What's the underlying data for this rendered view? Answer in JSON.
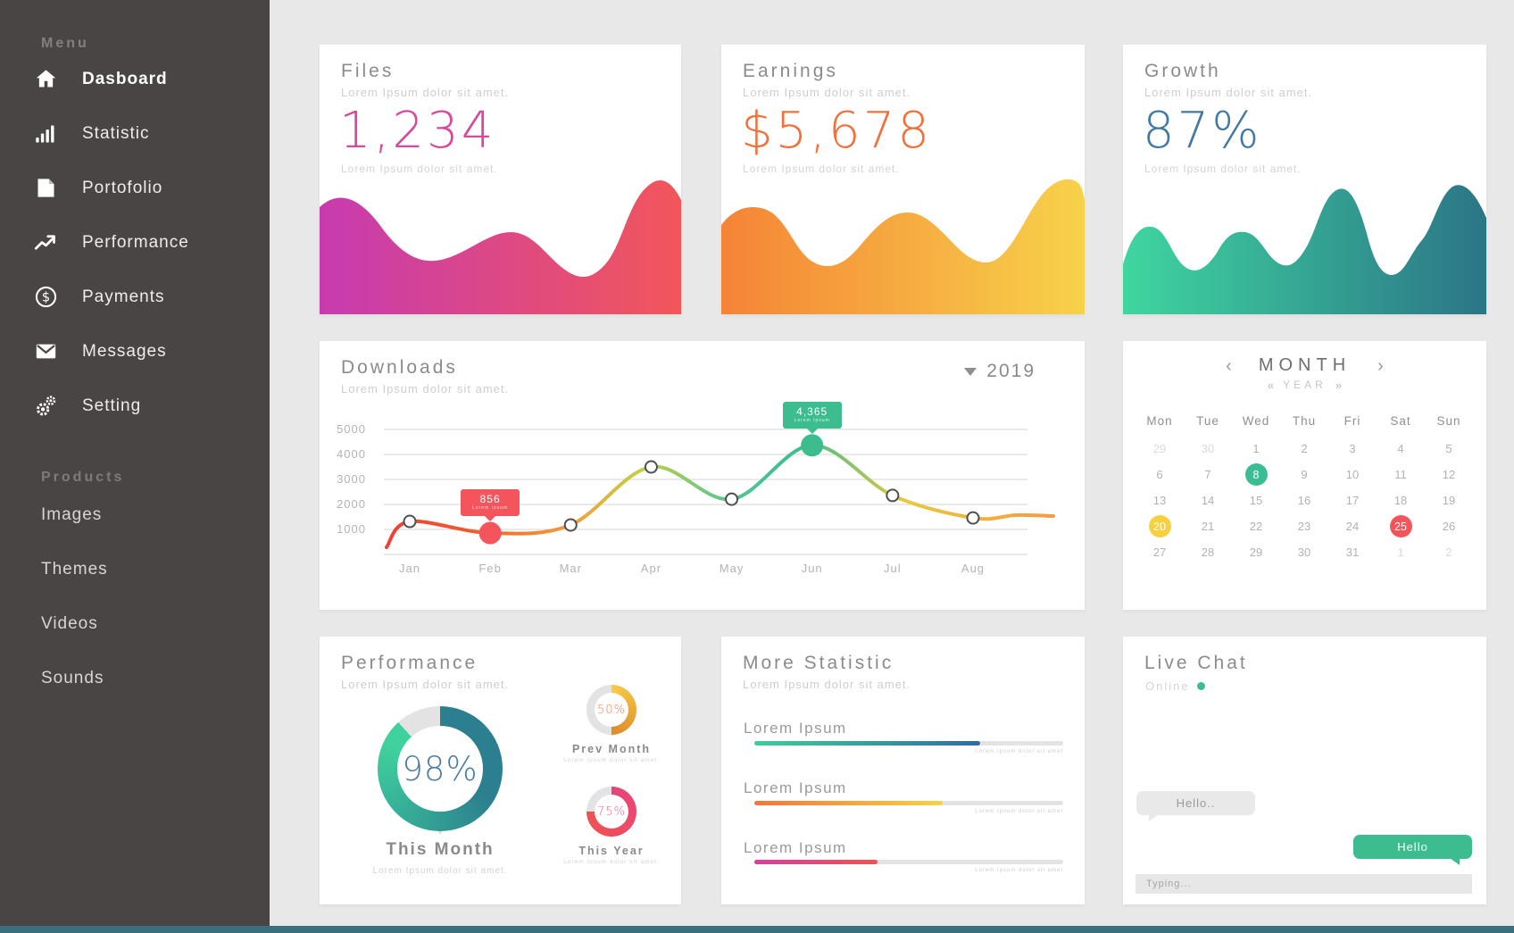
{
  "window": {
    "bg": "#e9e8e8",
    "sidebar_bg": "#4a4545",
    "bottom_bar_color": "#3a707e"
  },
  "sidebar": {
    "menu_label": "Menu",
    "items": [
      {
        "label": "Dasboard",
        "icon": "home",
        "active": true
      },
      {
        "label": "Statistic",
        "icon": "bar-chart",
        "active": false
      },
      {
        "label": "Portofolio",
        "icon": "file",
        "active": false
      },
      {
        "label": "Performance",
        "icon": "trending-up",
        "active": false
      },
      {
        "label": "Payments",
        "icon": "dollar-circle",
        "active": false
      },
      {
        "label": "Messages",
        "icon": "envelope",
        "active": false
      },
      {
        "label": "Setting",
        "icon": "gears",
        "active": false
      }
    ],
    "products_label": "Products",
    "product_items": [
      {
        "label": "Images"
      },
      {
        "label": "Themes"
      },
      {
        "label": "Videos"
      },
      {
        "label": "Sounds"
      }
    ]
  },
  "stat_cards": [
    {
      "title": "Files",
      "subtitle": "Lorem Ipsum dolor sit amet.",
      "value": "1,234",
      "caption": "Lorem Ipsum dolor sit amet.",
      "value_color": "#d8489b",
      "wave": [
        "#c73bb0",
        "#f2565a"
      ]
    },
    {
      "title": "Earnings",
      "subtitle": "Lorem Ipsum dolor sit amet.",
      "value": "$5,678",
      "caption": "Lorem Ipsum dolor sit amet.",
      "value_color": "#f0713c",
      "wave": [
        "#f58436",
        "#f7d24a"
      ]
    },
    {
      "title": "Growth",
      "subtitle": "Lorem Ipsum dolor sit amet.",
      "value": "87%",
      "caption": "Lorem Ipsum dolor sit amet.",
      "value_color": "#4279a3",
      "wave": [
        "#3fd6a0",
        "#2b7587"
      ]
    }
  ],
  "downloads": {
    "title": "Downloads",
    "subtitle": "Lorem Ipsum dolor sit amet.",
    "year_select": {
      "value": "2019"
    },
    "chart": {
      "type": "line",
      "x": [
        "Jan",
        "Feb",
        "Mar",
        "Apr",
        "May",
        "Jun",
        "Jul",
        "Aug"
      ],
      "values": [
        1320,
        856,
        1180,
        3500,
        2210,
        4365,
        2360,
        1460
      ],
      "y_ticks": [
        5000,
        4000,
        3000,
        2000,
        1000
      ],
      "ylim": [
        0,
        5000
      ],
      "line_gradient": [
        "#ef4136",
        "#f1592a",
        "#f59b3c",
        "#c3d143",
        "#52c596",
        "#3dbd8f",
        "#e8c93f",
        "#f59b42"
      ],
      "tooltips": [
        {
          "point": "Feb",
          "value": "856",
          "caption": "Lorem Ipsum",
          "color": "#f4545c"
        },
        {
          "point": "Jun",
          "value": "4,365",
          "caption": "Lorem Ipsum",
          "color": "#3dbd8f"
        }
      ]
    }
  },
  "calendar": {
    "prev_arrow": "‹",
    "next_arrow": "›",
    "month_label": "MONTH",
    "year_prev": "«",
    "year_label": "YEAR",
    "year_next": "»",
    "day_headers": [
      "Mon",
      "Tue",
      "Wed",
      "Thu",
      "Fri",
      "Sat",
      "Sun"
    ],
    "mark_colors": {
      "green": "#3cbc92",
      "yellow": "#f7d03f",
      "red": "#f4545c"
    },
    "weeks": [
      [
        {
          "d": "29",
          "muted": true
        },
        {
          "d": "30",
          "muted": true
        },
        {
          "d": "1"
        },
        {
          "d": "2"
        },
        {
          "d": "3"
        },
        {
          "d": "4"
        },
        {
          "d": "5"
        }
      ],
      [
        {
          "d": "6"
        },
        {
          "d": "7"
        },
        {
          "d": "8",
          "mark": "green"
        },
        {
          "d": "9"
        },
        {
          "d": "10"
        },
        {
          "d": "11"
        },
        {
          "d": "12"
        }
      ],
      [
        {
          "d": "13"
        },
        {
          "d": "14"
        },
        {
          "d": "15"
        },
        {
          "d": "16"
        },
        {
          "d": "17"
        },
        {
          "d": "18"
        },
        {
          "d": "19"
        }
      ],
      [
        {
          "d": "20",
          "mark": "yellow"
        },
        {
          "d": "21"
        },
        {
          "d": "22"
        },
        {
          "d": "23"
        },
        {
          "d": "24"
        },
        {
          "d": "25",
          "mark": "red"
        },
        {
          "d": "26"
        }
      ],
      [
        {
          "d": "27"
        },
        {
          "d": "28"
        },
        {
          "d": "29"
        },
        {
          "d": "30"
        },
        {
          "d": "31"
        },
        {
          "d": "1",
          "muted": true
        },
        {
          "d": "2",
          "muted": true
        }
      ]
    ]
  },
  "performance": {
    "title": "Performance",
    "subtitle": "Lorem Ipsum dolor sit amet.",
    "main_donut": {
      "value": "98%",
      "percent": 98,
      "label": "This Month",
      "caption": "Lorem Ipsum dolor sit amet.",
      "value_color": "#4c7ca3",
      "colors": [
        "#3fd19e",
        "#2b7f8e"
      ]
    },
    "small_donuts": [
      {
        "value": "50%",
        "percent": 50,
        "label": "Prev Month",
        "caption": "Lorem Ipsum dolor sit amet.",
        "value_color": "#ef7a4a",
        "colors": [
          "#f7cc45",
          "#dd8a2c"
        ]
      },
      {
        "value": "75%",
        "percent": 75,
        "label": "This Year",
        "caption": "Lorem Ipsum dolor sit amet.",
        "value_color": "#ed5f8f",
        "colors": [
          "#e8447c",
          "#ef5350"
        ]
      }
    ]
  },
  "more_statistic": {
    "title": "More Statistic",
    "subtitle": "Lorem Ipsum dolor sit amet.",
    "bars": [
      {
        "label": "Lorem Ipsum",
        "caption": "Lorem Ipsum dolor sit amet",
        "percent": 73,
        "colors": [
          "#3ecf9a",
          "#2e6da4"
        ]
      },
      {
        "label": "Lorem Ipsum",
        "caption": "Lorem Ipsum dolor sit amet",
        "percent": 61,
        "colors": [
          "#f5743c",
          "#f7d244"
        ]
      },
      {
        "label": "Lorem Ipsum",
        "caption": "Lorem Ipsum dolor sit amet",
        "percent": 40,
        "colors": [
          "#d63fa0",
          "#ef5350"
        ]
      }
    ]
  },
  "live_chat": {
    "title": "Live Chat",
    "status": "Online",
    "accent": "#3dbd8f",
    "messages": [
      {
        "text": "Hello..",
        "direction": "incoming"
      },
      {
        "text": "Hello",
        "direction": "outgoing"
      }
    ],
    "input_placeholder": "Typing..."
  }
}
